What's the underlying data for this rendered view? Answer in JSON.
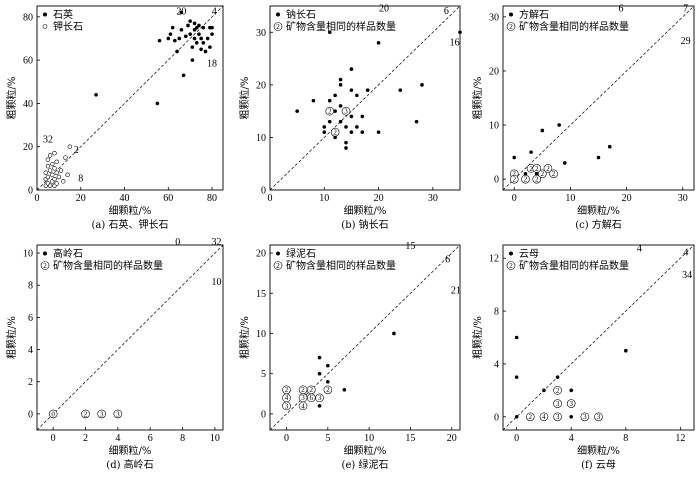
{
  "figure": {
    "common_xlabel": "细颗粒/%",
    "common_ylabel": "粗颗粒/%"
  },
  "chart_data": [
    {
      "type": "scatter",
      "caption": "(a) 石英、钾长石",
      "xlabel": "细颗粒/%",
      "ylabel": "粗颗粒/%",
      "xlim": [
        0,
        85
      ],
      "ylim": [
        0,
        85
      ],
      "xticks": [
        0,
        20,
        40,
        60,
        80
      ],
      "yticks": [
        0,
        20,
        40,
        60,
        80
      ],
      "legend": [
        {
          "marker": "filled",
          "label": "石英"
        },
        {
          "marker": "open",
          "label": "钾长石"
        }
      ],
      "annotations": [
        {
          "text": "20",
          "x": 66,
          "y": 81
        },
        {
          "text": "4",
          "x": 81,
          "y": 81
        },
        {
          "text": "18",
          "x": 80,
          "y": 57
        },
        {
          "text": "32",
          "x": 5,
          "y": 22
        },
        {
          "text": "2",
          "x": 18,
          "y": 17
        },
        {
          "text": "8",
          "x": 20,
          "y": 4
        }
      ],
      "series": [
        {
          "name": "石英",
          "marker": "filled",
          "points": [
            [
              27,
              44
            ],
            [
              55,
              40
            ],
            [
              56,
              69
            ],
            [
              60,
              70
            ],
            [
              61,
              72
            ],
            [
              62,
              75
            ],
            [
              63,
              69
            ],
            [
              64,
              64
            ],
            [
              65,
              70
            ],
            [
              66,
              74
            ],
            [
              66,
              82
            ],
            [
              67,
              53
            ],
            [
              68,
              71
            ],
            [
              69,
              76
            ],
            [
              70,
              78
            ],
            [
              70,
              72
            ],
            [
              71,
              66
            ],
            [
              71,
              60
            ],
            [
              72,
              77
            ],
            [
              72,
              74
            ],
            [
              72,
              70
            ],
            [
              73,
              75
            ],
            [
              73,
              68
            ],
            [
              74,
              76
            ],
            [
              74,
              72
            ],
            [
              75,
              65
            ],
            [
              75,
              70
            ],
            [
              76,
              75
            ],
            [
              76,
              68
            ],
            [
              77,
              64
            ],
            [
              78,
              70
            ],
            [
              79,
              75
            ],
            [
              79,
              66
            ],
            [
              80,
              72
            ],
            [
              80,
              75
            ]
          ]
        },
        {
          "name": "钾长石",
          "marker": "open",
          "points": [
            [
              4,
              2
            ],
            [
              4,
              5
            ],
            [
              4,
              8
            ],
            [
              5,
              3
            ],
            [
              5,
              6
            ],
            [
              5,
              11
            ],
            [
              5,
              14
            ],
            [
              6,
              2
            ],
            [
              6,
              9
            ],
            [
              6,
              16
            ],
            [
              7,
              4
            ],
            [
              7,
              7
            ],
            [
              7,
              12
            ],
            [
              8,
              2
            ],
            [
              8,
              5
            ],
            [
              8,
              10
            ],
            [
              8,
              17
            ],
            [
              9,
              3
            ],
            [
              9,
              8
            ],
            [
              9,
              13
            ],
            [
              10,
              6
            ],
            [
              11,
              9
            ],
            [
              12,
              4
            ],
            [
              13,
              15
            ],
            [
              14,
              7
            ],
            [
              15,
              20
            ]
          ]
        }
      ]
    },
    {
      "type": "scatter",
      "caption": "(b) 钠长石",
      "xlabel": "细颗粒/%",
      "ylabel": "粗颗粒/%",
      "xlim": [
        0,
        35
      ],
      "ylim": [
        0,
        35
      ],
      "xticks": [
        0,
        10,
        20,
        30
      ],
      "yticks": [
        0,
        10,
        20,
        30
      ],
      "legend": [
        {
          "marker": "filled",
          "label": "钠长石"
        },
        {
          "marker": "circled-number",
          "label": "矿物含量相同的样品数量"
        }
      ],
      "annotations": [
        {
          "text": "20",
          "x": 21,
          "y": 34
        },
        {
          "text": "6",
          "x": 32.5,
          "y": 33.5
        },
        {
          "text": "16",
          "x": 34,
          "y": 27.5
        }
      ],
      "series": [
        {
          "name": "钠长石",
          "marker": "filled",
          "points": [
            [
              5,
              15
            ],
            [
              8,
              17
            ],
            [
              10,
              11
            ],
            [
              10,
              12
            ],
            [
              11,
              30
            ],
            [
              11,
              13
            ],
            [
              11,
              17
            ],
            [
              12,
              10
            ],
            [
              12,
              15
            ],
            [
              12,
              18
            ],
            [
              13,
              13
            ],
            [
              13,
              16
            ],
            [
              13,
              21
            ],
            [
              13,
              20
            ],
            [
              14,
              9
            ],
            [
              14,
              8
            ],
            [
              14,
              12
            ],
            [
              15,
              23
            ],
            [
              15,
              19
            ],
            [
              15,
              14
            ],
            [
              15,
              11
            ],
            [
              16,
              12
            ],
            [
              16,
              18
            ],
            [
              17,
              11
            ],
            [
              17,
              14
            ],
            [
              18,
              19
            ],
            [
              20,
              28
            ],
            [
              20,
              11
            ],
            [
              24,
              19
            ],
            [
              27,
              13
            ],
            [
              28,
              20
            ],
            [
              35,
              30
            ]
          ]
        },
        {
          "name": "count-markers",
          "marker": "circled-number",
          "points": [
            {
              "x": 11,
              "y": 15,
              "n": 2
            },
            {
              "x": 12,
              "y": 11,
              "n": 2
            },
            {
              "x": 14,
              "y": 15,
              "n": 3
            }
          ]
        }
      ]
    },
    {
      "type": "scatter",
      "caption": "(c) 方解石",
      "xlabel": "细颗粒/%",
      "ylabel": "粗颗粒/%",
      "xlim": [
        -2,
        32
      ],
      "ylim": [
        -2,
        32
      ],
      "xticks": [
        0,
        10,
        20,
        30
      ],
      "yticks": [
        0,
        10,
        20,
        30
      ],
      "legend": [
        {
          "marker": "filled",
          "label": "方解石"
        },
        {
          "marker": "circled-number",
          "label": "矿物含量相同的样品数量"
        }
      ],
      "annotations": [
        {
          "text": "6",
          "x": 19,
          "y": 31
        },
        {
          "text": "7",
          "x": 30.5,
          "y": 31
        },
        {
          "text": "29",
          "x": 30.5,
          "y": 25
        }
      ],
      "series": [
        {
          "name": "方解石",
          "marker": "filled",
          "points": [
            [
              0,
              4
            ],
            [
              2,
              1
            ],
            [
              3,
              5
            ],
            [
              4,
              1
            ],
            [
              5,
              9
            ],
            [
              8,
              10
            ],
            [
              9,
              3
            ],
            [
              15,
              4
            ],
            [
              17,
              6
            ]
          ]
        },
        {
          "name": "count-markers",
          "marker": "circled-number",
          "points": [
            {
              "x": 0,
              "y": 1,
              "n": 2
            },
            {
              "x": 0,
              "y": 0,
              "n": 2
            },
            {
              "x": 2,
              "y": 0,
              "n": 2
            },
            {
              "x": 3,
              "y": 2,
              "n": 2
            },
            {
              "x": 4,
              "y": 2,
              "n": 2
            },
            {
              "x": 4,
              "y": 0,
              "n": 2
            },
            {
              "x": 5,
              "y": 1,
              "n": 2
            },
            {
              "x": 6,
              "y": 2,
              "n": 2
            },
            {
              "x": 7,
              "y": 1,
              "n": 2
            }
          ]
        }
      ]
    },
    {
      "type": "scatter",
      "caption": "(d) 高岭石",
      "xlabel": "细颗粒/%",
      "ylabel": "粗颗粒/%",
      "xlim": [
        -1,
        10.5
      ],
      "ylim": [
        -1,
        10.5
      ],
      "xticks": [
        0,
        2,
        4,
        6,
        8,
        10
      ],
      "yticks": [
        0,
        2,
        4,
        6,
        8,
        10
      ],
      "legend": [
        {
          "marker": "filled",
          "label": "高岭石"
        },
        {
          "marker": "circled-number",
          "label": "矿物含量相同的样品数量"
        }
      ],
      "annotations": [
        {
          "text": "0",
          "x": 7.7,
          "y": 10.5
        },
        {
          "text": "32",
          "x": 10.1,
          "y": 10.5
        },
        {
          "text": "10",
          "x": 10.1,
          "y": 8
        }
      ],
      "series": [
        {
          "name": "count-markers",
          "marker": "circled-number",
          "points": [
            {
              "x": 0,
              "y": 0,
              "n": 0
            },
            {
              "x": 2,
              "y": 0,
              "n": 2
            },
            {
              "x": 3,
              "y": 0,
              "n": 3
            },
            {
              "x": 4,
              "y": 0,
              "n": 3
            }
          ]
        }
      ]
    },
    {
      "type": "scatter",
      "caption": "(e) 绿泥石",
      "xlabel": "细颗粒/%",
      "ylabel": "粗颗粒/%",
      "xlim": [
        -2,
        21
      ],
      "ylim": [
        -2,
        21
      ],
      "xticks": [
        0,
        5,
        10,
        15,
        20
      ],
      "yticks": [
        0,
        5,
        10,
        15,
        20
      ],
      "legend": [
        {
          "marker": "filled",
          "label": "绿泥石"
        },
        {
          "marker": "circled-number",
          "label": "矿物含量相同的样品数量"
        }
      ],
      "annotations": [
        {
          "text": "15",
          "x": 15,
          "y": 20.5
        },
        {
          "text": "6",
          "x": 19.5,
          "y": 18.8
        },
        {
          "text": "21",
          "x": 20.5,
          "y": 15
        }
      ],
      "series": [
        {
          "name": "绿泥石",
          "marker": "filled",
          "points": [
            [
              4,
              1
            ],
            [
              4,
              5
            ],
            [
              4,
              7
            ],
            [
              5,
              4
            ],
            [
              5,
              6
            ],
            [
              7,
              3
            ],
            [
              13,
              10
            ]
          ]
        },
        {
          "name": "count-markers",
          "marker": "circled-number",
          "points": [
            {
              "x": 0,
              "y": 3,
              "n": 2
            },
            {
              "x": 0,
              "y": 2,
              "n": 4
            },
            {
              "x": 0,
              "y": 1,
              "n": 3
            },
            {
              "x": 2,
              "y": 3,
              "n": 2
            },
            {
              "x": 2,
              "y": 2,
              "n": 3
            },
            {
              "x": 2,
              "y": 1,
              "n": 4
            },
            {
              "x": 3,
              "y": 3,
              "n": 2
            },
            {
              "x": 3,
              "y": 2,
              "n": 6
            },
            {
              "x": 4,
              "y": 2,
              "n": 3
            },
            {
              "x": 5,
              "y": 3,
              "n": 2
            }
          ]
        }
      ]
    },
    {
      "type": "scatter",
      "caption": "(f) 云母",
      "xlabel": "细颗粒/%",
      "ylabel": "粗颗粒/%",
      "xlim": [
        -1,
        13
      ],
      "ylim": [
        -1,
        13
      ],
      "xticks": [
        0,
        4,
        8,
        12
      ],
      "yticks": [
        0,
        4,
        8,
        12
      ],
      "legend": [
        {
          "marker": "filled",
          "label": "云母"
        },
        {
          "marker": "circled-number",
          "label": "矿物含量相同的样品数量"
        }
      ],
      "annotations": [
        {
          "text": "4",
          "x": 9,
          "y": 12.5
        },
        {
          "text": "4",
          "x": 12.4,
          "y": 12.2
        },
        {
          "text": "34",
          "x": 12.5,
          "y": 10.5
        }
      ],
      "series": [
        {
          "name": "云母",
          "marker": "filled",
          "points": [
            [
              0,
              0
            ],
            [
              0,
              3
            ],
            [
              0,
              6
            ],
            [
              2,
              0
            ],
            [
              2,
              2
            ],
            [
              3,
              3
            ],
            [
              4,
              0
            ],
            [
              4,
              2
            ],
            [
              8,
              5
            ]
          ]
        },
        {
          "name": "count-markers",
          "marker": "circled-number",
          "points": [
            {
              "x": 1,
              "y": 0,
              "n": 2
            },
            {
              "x": 2,
              "y": 0,
              "n": 4
            },
            {
              "x": 3,
              "y": 0,
              "n": 3
            },
            {
              "x": 3,
              "y": 1,
              "n": 3
            },
            {
              "x": 3,
              "y": 2,
              "n": 2
            },
            {
              "x": 4,
              "y": 1,
              "n": 3
            },
            {
              "x": 5,
              "y": 0,
              "n": 3
            },
            {
              "x": 6,
              "y": 0,
              "n": 3
            }
          ]
        }
      ]
    }
  ]
}
